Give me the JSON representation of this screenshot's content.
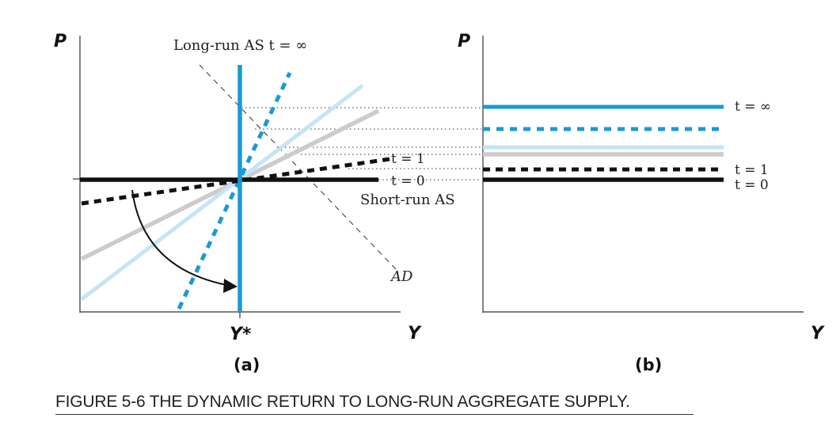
{
  "panel_a": {
    "y_axis_label": "P",
    "x_axis_label": "Y",
    "x_tick_label": "Y*",
    "label": "(a)",
    "curve_labels": {
      "long_run": "Long-run AS t = ∞",
      "short_run": "Short-run AS",
      "ad": "AD",
      "t1": "t = 1",
      "t0": "t = 0"
    }
  },
  "panel_b": {
    "y_axis_label": "P",
    "x_axis_label": "Y",
    "label": "(b)",
    "line_labels": {
      "t_inf": "t = ∞",
      "t1": "t = 1",
      "t0": "t = 0"
    }
  },
  "caption": "FIGURE 5-6   THE DYNAMIC RETURN TO LONG-RUN AGGREGATE SUPPLY.",
  "colors": {
    "blue": "#1a9ad6",
    "light_blue": "#c6e4f5",
    "gray": "#cccccc",
    "black": "#111111"
  }
}
